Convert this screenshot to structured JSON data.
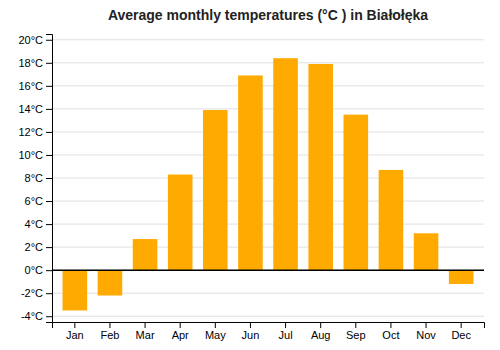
{
  "chart_data": {
    "type": "bar",
    "title": "Average monthly temperatures (°C ) in Białołęka",
    "categories": [
      "Jan",
      "Feb",
      "Mar",
      "Apr",
      "May",
      "Jun",
      "Jul",
      "Aug",
      "Sep",
      "Oct",
      "Nov",
      "Dec"
    ],
    "values": [
      -3.5,
      -2.2,
      2.7,
      8.3,
      13.9,
      16.9,
      18.4,
      17.9,
      13.5,
      8.7,
      3.2,
      -1.2
    ],
    "color": "#FFAA00",
    "ylim": [
      -4.5,
      20.5
    ],
    "yticks": [
      {
        "value": -4,
        "label": "-4°C"
      },
      {
        "value": -2,
        "label": "-2°C"
      },
      {
        "value": 0,
        "label": "0°C"
      },
      {
        "value": 2,
        "label": "2°C"
      },
      {
        "value": 4,
        "label": "4°C"
      },
      {
        "value": 6,
        "label": "6°C"
      },
      {
        "value": 8,
        "label": "8°C"
      },
      {
        "value": 10,
        "label": "10°C"
      },
      {
        "value": 12,
        "label": "12°C"
      },
      {
        "value": 14,
        "label": "14°C"
      },
      {
        "value": 16,
        "label": "16°C"
      },
      {
        "value": 18,
        "label": "18°C"
      },
      {
        "value": 20,
        "label": "20°C"
      }
    ],
    "grid": true
  }
}
